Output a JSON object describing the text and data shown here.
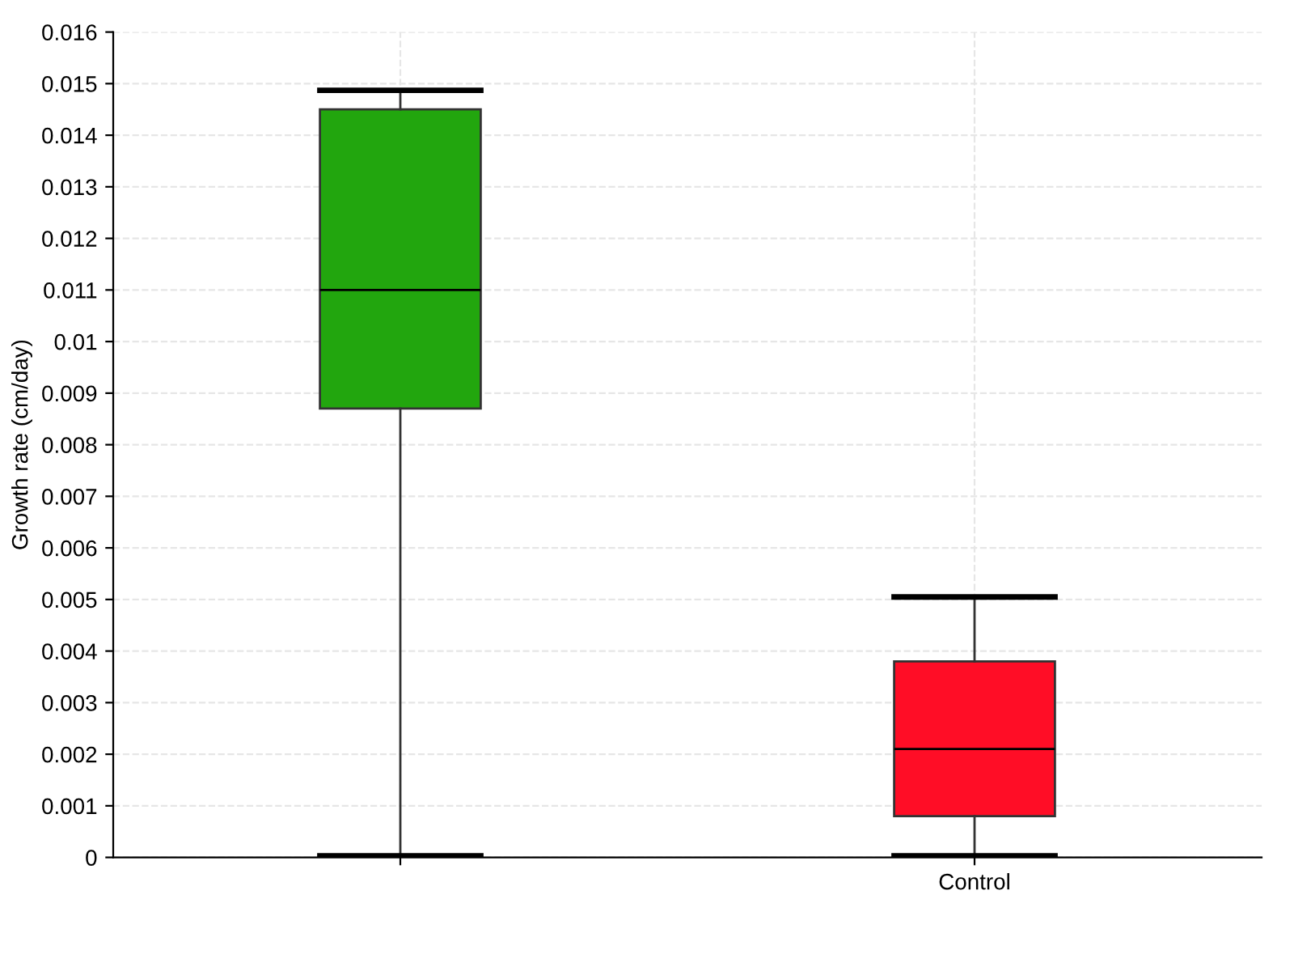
{
  "chart_data": {
    "type": "box",
    "ylabel": "Growth rate (cm/day)",
    "categories": [
      null,
      "Control"
    ],
    "colors": [
      "#22a60e",
      "#ff0d26"
    ],
    "boxes": [
      {
        "low": 3e-05,
        "q1": 0.0087,
        "median": 0.011,
        "q3": 0.0145,
        "high": 0.01487
      },
      {
        "low": 3e-05,
        "q1": 0.0008,
        "median": 0.0021,
        "q3": 0.0038,
        "high": 0.00505
      }
    ],
    "ylim": [
      0,
      0.016
    ],
    "yticks": [
      0,
      0.001,
      0.002,
      0.003,
      0.004,
      0.005,
      0.006,
      0.007,
      0.008,
      0.009,
      0.01,
      0.011,
      0.012,
      0.013,
      0.014,
      0.015,
      0.016
    ],
    "grid": true,
    "legend": false
  }
}
